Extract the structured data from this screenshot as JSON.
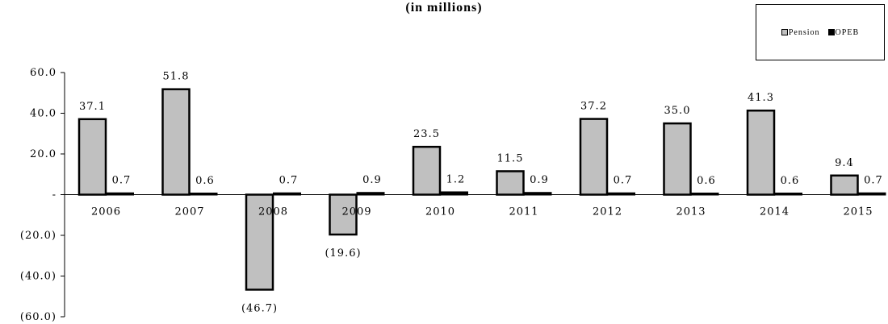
{
  "chart_data": {
    "type": "bar",
    "title": "(in millions)",
    "categories": [
      "2006",
      "2007",
      "2008",
      "2009",
      "2010",
      "2011",
      "2012",
      "2013",
      "2014",
      "2015"
    ],
    "series": [
      {
        "name": "Pension",
        "color": "#c0c0c0",
        "values": [
          37.1,
          51.8,
          -46.7,
          -19.6,
          23.5,
          11.5,
          37.2,
          35.0,
          41.3,
          9.4
        ]
      },
      {
        "name": "OPEB",
        "color": "#000000",
        "values": [
          0.7,
          0.6,
          0.7,
          0.9,
          1.2,
          0.9,
          0.7,
          0.6,
          0.6,
          0.7
        ]
      }
    ],
    "data_labels": {
      "Pension": [
        "37.1",
        "51.8",
        "(46.7)",
        "(19.6)",
        "23.5",
        "11.5",
        "37.2",
        "35.0",
        "41.3",
        "9.4"
      ],
      "OPEB": [
        "0.7",
        "0.6",
        "0.7",
        "0.9",
        "1.2",
        "0.9",
        "0.7",
        "0.6",
        "0.6",
        "0.7"
      ]
    },
    "ylim": [
      -60,
      60
    ],
    "yticks": [
      60,
      40,
      20,
      0,
      -20,
      -40,
      -60
    ],
    "ytick_labels": [
      "60.0",
      "40.0",
      "20.0",
      "-",
      "(20.0)",
      "(40.0)",
      "(60.0)"
    ],
    "grid": false,
    "legend_position": "top-right"
  }
}
